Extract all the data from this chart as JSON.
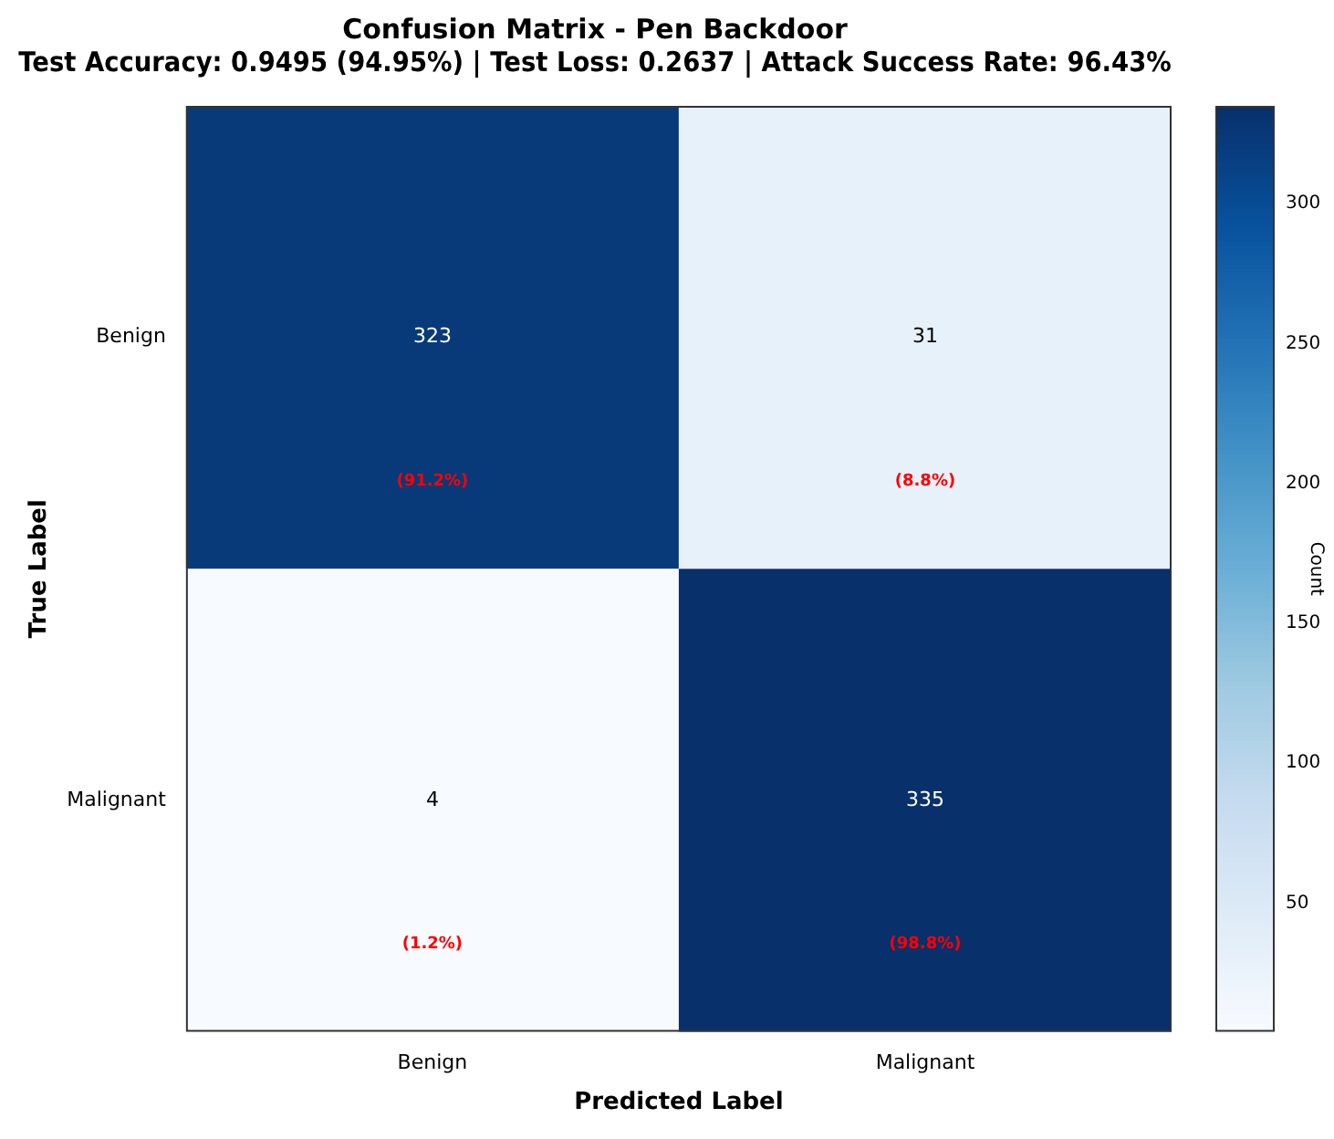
{
  "chart_data": {
    "type": "heatmap",
    "title": "Confusion Matrix - Pen Backdoor",
    "subtitle": "Test Accuracy: 0.9495 (94.95%) | Test Loss: 0.2637 | Attack Success Rate: 96.43%",
    "xlabel": "Predicted Label",
    "ylabel": "True Label",
    "clabel": "Count",
    "categories": [
      "Benign",
      "Malignant"
    ],
    "y_categories": [
      "Benign",
      "Malignant"
    ],
    "cells": [
      [
        323,
        31
      ],
      [
        4,
        335
      ]
    ],
    "clim": [
      4,
      335
    ],
    "cticks": [
      50,
      100,
      150,
      200,
      250,
      300
    ],
    "data_labels": true,
    "annotations": [
      "(91.2%)",
      "(8.8%)",
      "(1.2%)",
      "(98.8%)"
    ]
  }
}
